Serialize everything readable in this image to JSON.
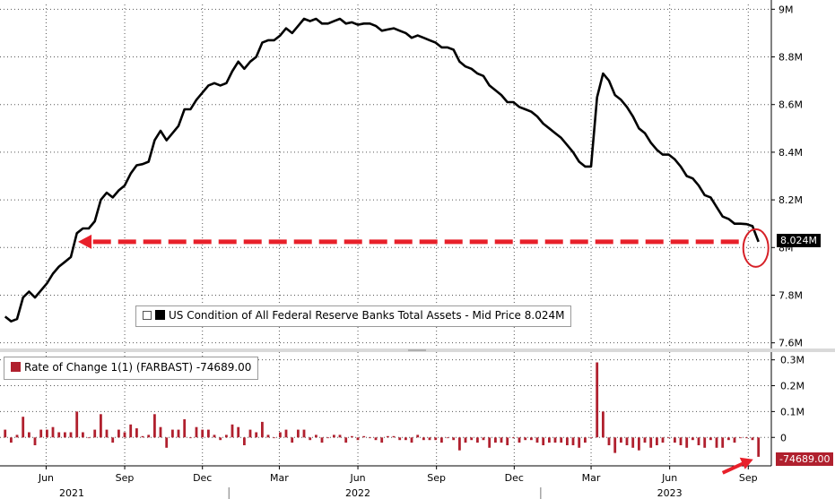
{
  "chart_data": [
    {
      "type": "line",
      "ylim": [
        7580000,
        9020000
      ],
      "y_ticks": [
        {
          "value": 9000000,
          "label": "9M"
        },
        {
          "value": 8800000,
          "label": "8.8M"
        },
        {
          "value": 8600000,
          "label": "8.6M"
        },
        {
          "value": 8400000,
          "label": "8.4M"
        },
        {
          "value": 8200000,
          "label": "8.2M"
        },
        {
          "value": 8000000,
          "label": "8M"
        },
        {
          "value": 7800000,
          "label": "7.8M"
        },
        {
          "value": 7600000,
          "label": "7.6M"
        }
      ],
      "grid": true,
      "legend_position": "bottom-center",
      "series": [
        {
          "name": "US Condition of All Federal Reserve Banks Total Assets - Mid Price 8.024M",
          "color": "#000000",
          "x": [
            "2021-04-14",
            "2021-04-21",
            "2021-04-28",
            "2021-05-05",
            "2021-05-12",
            "2021-05-19",
            "2021-05-26",
            "2021-06-02",
            "2021-06-09",
            "2021-06-16",
            "2021-06-23",
            "2021-06-30",
            "2021-07-07",
            "2021-07-14",
            "2021-07-21",
            "2021-07-28",
            "2021-08-04",
            "2021-08-11",
            "2021-08-18",
            "2021-08-25",
            "2021-09-01",
            "2021-09-08",
            "2021-09-15",
            "2021-09-22",
            "2021-09-29",
            "2021-10-06",
            "2021-10-13",
            "2021-10-20",
            "2021-10-27",
            "2021-11-03",
            "2021-11-10",
            "2021-11-17",
            "2021-11-24",
            "2021-12-01",
            "2021-12-08",
            "2021-12-15",
            "2021-12-22",
            "2021-12-29",
            "2022-01-05",
            "2022-01-12",
            "2022-01-19",
            "2022-01-26",
            "2022-02-02",
            "2022-02-09",
            "2022-02-16",
            "2022-02-23",
            "2022-03-02",
            "2022-03-09",
            "2022-03-16",
            "2022-03-23",
            "2022-03-30",
            "2022-04-06",
            "2022-04-13",
            "2022-04-20",
            "2022-04-27",
            "2022-05-04",
            "2022-05-11",
            "2022-05-18",
            "2022-05-25",
            "2022-06-01",
            "2022-06-08",
            "2022-06-15",
            "2022-06-22",
            "2022-06-29",
            "2022-07-06",
            "2022-07-13",
            "2022-07-20",
            "2022-07-27",
            "2022-08-03",
            "2022-08-10",
            "2022-08-17",
            "2022-08-24",
            "2022-08-31",
            "2022-09-07",
            "2022-09-14",
            "2022-09-21",
            "2022-09-28",
            "2022-10-05",
            "2022-10-12",
            "2022-10-19",
            "2022-10-26",
            "2022-11-02",
            "2022-11-09",
            "2022-11-16",
            "2022-11-23",
            "2022-11-30",
            "2022-12-07",
            "2022-12-14",
            "2022-12-21",
            "2022-12-28",
            "2023-01-04",
            "2023-01-11",
            "2023-01-18",
            "2023-01-25",
            "2023-02-01",
            "2023-02-08",
            "2023-02-15",
            "2023-02-22",
            "2023-03-01",
            "2023-03-08",
            "2023-03-15",
            "2023-03-22",
            "2023-03-29",
            "2023-04-05",
            "2023-04-12",
            "2023-04-19",
            "2023-04-26",
            "2023-05-03",
            "2023-05-10",
            "2023-05-17",
            "2023-05-24",
            "2023-05-31",
            "2023-06-07",
            "2023-06-14",
            "2023-06-21",
            "2023-06-28",
            "2023-07-05",
            "2023-07-12",
            "2023-07-19",
            "2023-07-26",
            "2023-08-02",
            "2023-08-09",
            "2023-08-16",
            "2023-08-23",
            "2023-08-30",
            "2023-09-06",
            "2023-09-13"
          ],
          "values": [
            7710000,
            7690000,
            7700000,
            7790000,
            7815000,
            7790000,
            7820000,
            7850000,
            7890000,
            7920000,
            7940000,
            7960000,
            8060000,
            8080000,
            8080000,
            8110000,
            8200000,
            8230000,
            8210000,
            8240000,
            8260000,
            8310000,
            8345000,
            8350000,
            8360000,
            8450000,
            8490000,
            8450000,
            8480000,
            8510000,
            8580000,
            8580000,
            8620000,
            8650000,
            8680000,
            8690000,
            8680000,
            8690000,
            8740000,
            8780000,
            8750000,
            8780000,
            8800000,
            8860000,
            8870000,
            8870000,
            8890000,
            8920000,
            8900000,
            8930000,
            8960000,
            8950000,
            8960000,
            8940000,
            8940000,
            8950000,
            8960000,
            8940000,
            8945000,
            8935000,
            8940000,
            8940000,
            8930000,
            8910000,
            8915000,
            8920000,
            8910000,
            8900000,
            8880000,
            8890000,
            8880000,
            8870000,
            8860000,
            8840000,
            8840000,
            8830000,
            8780000,
            8760000,
            8750000,
            8730000,
            8720000,
            8680000,
            8660000,
            8640000,
            8610000,
            8610000,
            8590000,
            8580000,
            8570000,
            8550000,
            8520000,
            8500000,
            8480000,
            8460000,
            8430000,
            8400000,
            8360000,
            8340000,
            8340000,
            8630000,
            8730000,
            8700000,
            8640000,
            8620000,
            8590000,
            8550000,
            8500000,
            8480000,
            8440000,
            8410000,
            8390000,
            8390000,
            8370000,
            8340000,
            8300000,
            8290000,
            8260000,
            8220000,
            8210000,
            8170000,
            8130000,
            8120000,
            8100000,
            8100000,
            8098000,
            8090000,
            8024000
          ]
        }
      ],
      "annotations": [
        {
          "type": "dashed-arrow",
          "color": "#e8202a",
          "y_value": 8024000,
          "from_x": "2023-09-13",
          "to_x": "2021-06-30"
        },
        {
          "type": "circle",
          "color": "#d62027",
          "at_x": "2023-09-13"
        }
      ],
      "last_value_label": {
        "text": "8.024M",
        "bg": "#000000",
        "fg": "#ffffff"
      }
    },
    {
      "type": "bar",
      "ylim": [
        -110000,
        330000
      ],
      "y_ticks": [
        {
          "value": 300000,
          "label": "0.3M"
        },
        {
          "value": 200000,
          "label": "0.2M"
        },
        {
          "value": 100000,
          "label": "0.1M"
        },
        {
          "value": 0,
          "label": "0"
        }
      ],
      "grid": true,
      "legend_position": "top-left",
      "series": [
        {
          "name": "Rate of Change 1(1) (FARBAST) -74689.00",
          "color": "#b0202e",
          "values": [
            30000,
            -20000,
            10000,
            80000,
            20000,
            -30000,
            30000,
            30000,
            40000,
            20000,
            20000,
            20000,
            100000,
            20000,
            0,
            30000,
            90000,
            30000,
            -20000,
            30000,
            20000,
            50000,
            35000,
            5000,
            10000,
            90000,
            40000,
            -40000,
            30000,
            30000,
            70000,
            0,
            40000,
            30000,
            30000,
            10000,
            -10000,
            10000,
            50000,
            40000,
            -30000,
            30000,
            20000,
            60000,
            10000,
            0,
            20000,
            30000,
            -20000,
            30000,
            30000,
            -10000,
            10000,
            -20000,
            0,
            10000,
            10000,
            -20000,
            5000,
            -10000,
            5000,
            0,
            -10000,
            -20000,
            5000,
            5000,
            -10000,
            -10000,
            -20000,
            10000,
            -10000,
            -10000,
            -10000,
            -20000,
            0,
            -10000,
            -50000,
            -20000,
            -10000,
            -20000,
            -10000,
            -40000,
            -20000,
            -20000,
            -30000,
            0,
            -20000,
            -10000,
            -10000,
            -20000,
            -30000,
            -20000,
            -20000,
            -20000,
            -30000,
            -30000,
            -40000,
            -20000,
            0,
            290000,
            100000,
            -30000,
            -60000,
            -20000,
            -30000,
            -40000,
            -50000,
            -20000,
            -40000,
            -30000,
            -20000,
            0,
            -20000,
            -30000,
            -40000,
            -10000,
            -30000,
            -40000,
            -10000,
            -40000,
            -40000,
            -10000,
            -20000,
            0,
            -2000,
            -10000,
            -74689
          ]
        }
      ],
      "last_value_label": {
        "text": "-74689.00",
        "bg": "#b0202e",
        "fg": "#ffffff"
      }
    }
  ],
  "x_axis": {
    "month_ticks": [
      {
        "date": "2021-06-01",
        "label": "Jun"
      },
      {
        "date": "2021-09-01",
        "label": "Sep"
      },
      {
        "date": "2021-12-01",
        "label": "Dec"
      },
      {
        "date": "2022-03-01",
        "label": "Mar"
      },
      {
        "date": "2022-06-01",
        "label": "Jun"
      },
      {
        "date": "2022-09-01",
        "label": "Sep"
      },
      {
        "date": "2022-12-01",
        "label": "Dec"
      },
      {
        "date": "2023-03-01",
        "label": "Mar"
      },
      {
        "date": "2023-06-01",
        "label": "Jun"
      },
      {
        "date": "2023-09-01",
        "label": "Sep"
      }
    ],
    "year_labels": [
      {
        "year_label": "2021",
        "mid": "2021-07-01"
      },
      {
        "year_label": "2022",
        "mid": "2022-06-01"
      },
      {
        "year_label": "2023",
        "mid": "2023-06-01"
      }
    ],
    "year_dividers": [
      "2022-01-01",
      "2023-01-01"
    ]
  }
}
